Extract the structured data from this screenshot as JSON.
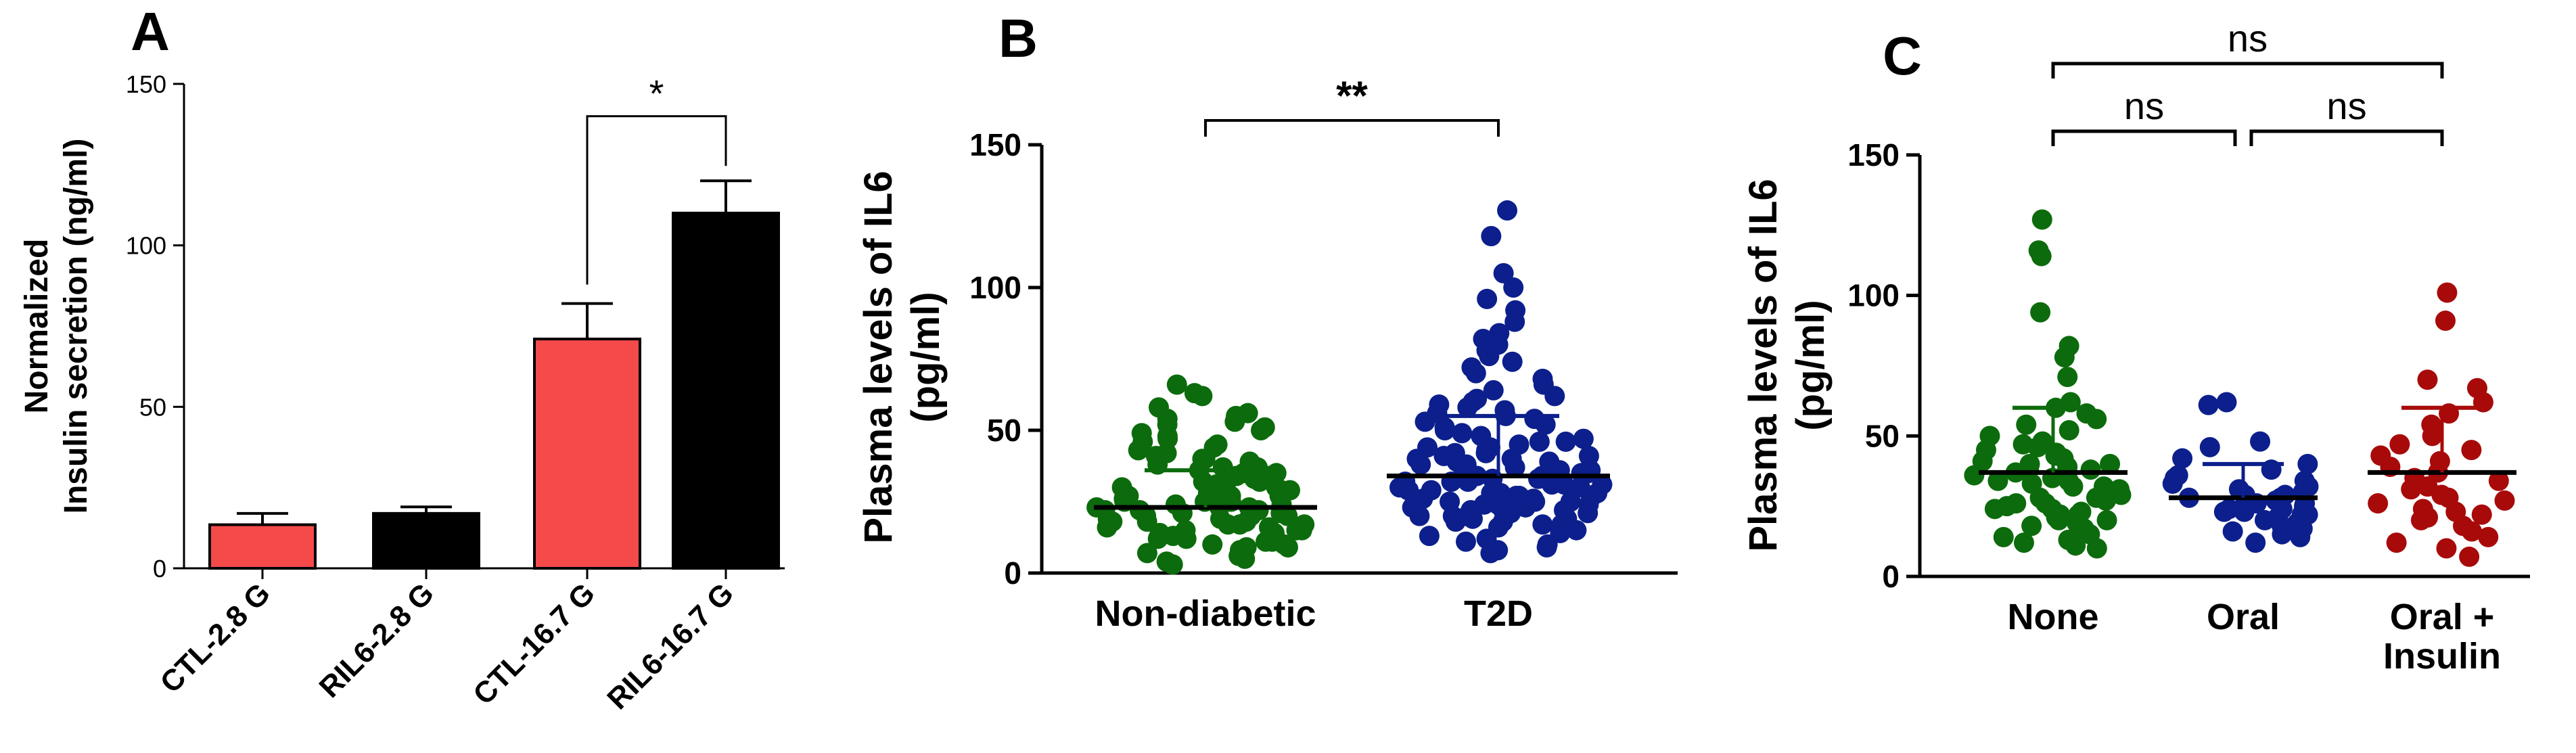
{
  "chart_data": [
    {
      "panel": "A",
      "type": "bar",
      "title": "",
      "xlabel": "",
      "ylabel": "Normalized Insulin secretion (ng/ml)",
      "ylabel_lines": [
        "Normalized",
        "Insulin secretion (ng/ml)"
      ],
      "ylim": [
        0,
        150
      ],
      "yticks": [
        0,
        50,
        100,
        150
      ],
      "categories": [
        "CTL-2.8 G",
        "RIL6-2.8 G",
        "CTL-16.7 G",
        "RIL6-16.7 G"
      ],
      "values": [
        13.5,
        17,
        71,
        110
      ],
      "errors": [
        3.5,
        2,
        11,
        10
      ],
      "colors": [
        "#f44a4a",
        "#000000",
        "#f44a4a",
        "#000000"
      ],
      "significance": [
        {
          "from": 2,
          "to": 3,
          "label": "*"
        }
      ]
    },
    {
      "panel": "B",
      "type": "scatter",
      "title": "",
      "xlabel": "",
      "ylabel": "Plasma levels of IL6 (pg/ml)",
      "ylabel_lines": [
        "Plasma levels of IL6",
        "(pg/ml)"
      ],
      "ylim": [
        0,
        150
      ],
      "yticks": [
        0,
        50,
        100,
        150
      ],
      "categories": [
        "Non-diabetic",
        "T2D"
      ],
      "colors": [
        "#0c6b0c",
        "#0c1f8c"
      ],
      "means": [
        23,
        34
      ],
      "sd_upper": [
        36,
        55
      ],
      "groups": [
        {
          "name": "Non-diabetic",
          "values": [
            66,
            63,
            62,
            58,
            56,
            55,
            54,
            53,
            52,
            51,
            50,
            49,
            48,
            47,
            46,
            45,
            44,
            43,
            42,
            41,
            40,
            40,
            39,
            38,
            37,
            37,
            36,
            35,
            35,
            34,
            34,
            33,
            32,
            32,
            31,
            31,
            30,
            30,
            29,
            29,
            28,
            28,
            27,
            27,
            27,
            26,
            26,
            25,
            25,
            25,
            24,
            24,
            23,
            23,
            23,
            22,
            22,
            22,
            21,
            21,
            20,
            20,
            20,
            19,
            19,
            18,
            18,
            18,
            17,
            17,
            17,
            16,
            16,
            15,
            15,
            15,
            14,
            14,
            13,
            13,
            12,
            12,
            11,
            11,
            10,
            10,
            9,
            9,
            8,
            7,
            6,
            5,
            4,
            3
          ]
        },
        {
          "name": "T2D",
          "values": [
            127,
            118,
            105,
            100,
            96,
            92,
            88,
            84,
            82,
            80,
            78,
            76,
            74,
            72,
            70,
            68,
            66,
            64,
            62,
            61,
            60,
            59,
            58,
            57,
            56,
            55,
            54,
            53,
            52,
            51,
            50,
            49,
            48,
            47,
            46,
            46,
            45,
            44,
            44,
            43,
            42,
            42,
            41,
            41,
            40,
            40,
            39,
            39,
            38,
            38,
            37,
            37,
            36,
            36,
            35,
            35,
            34,
            34,
            33,
            33,
            32,
            32,
            32,
            31,
            31,
            31,
            30,
            30,
            30,
            29,
            29,
            29,
            28,
            28,
            28,
            27,
            27,
            27,
            26,
            26,
            26,
            25,
            25,
            25,
            24,
            24,
            24,
            23,
            23,
            23,
            22,
            22,
            22,
            21,
            21,
            21,
            20,
            20,
            20,
            19,
            19,
            18,
            18,
            17,
            17,
            16,
            15,
            14,
            13,
            12,
            11,
            10,
            9,
            8,
            7
          ]
        }
      ],
      "significance": [
        {
          "from": 0,
          "to": 1,
          "label": "**"
        }
      ]
    },
    {
      "panel": "C",
      "type": "scatter",
      "title": "",
      "xlabel": "",
      "ylabel": "Plasma levels of IL6 (pg/ml)",
      "ylabel_lines": [
        "Plasma levels of IL6",
        "(pg/ml)"
      ],
      "ylim": [
        0,
        150
      ],
      "yticks": [
        0,
        50,
        100,
        150
      ],
      "categories": [
        "None",
        "Oral",
        "Oral + Insulin"
      ],
      "category_lines": [
        [
          "None"
        ],
        [
          "Oral"
        ],
        [
          "Oral +",
          "Insulin"
        ]
      ],
      "colors": [
        "#0c6b0c",
        "#0c1f8c",
        "#a80a0a"
      ],
      "means": [
        37,
        28,
        37
      ],
      "sd_upper": [
        60,
        40,
        60
      ],
      "groups": [
        {
          "name": "None",
          "values": [
            127,
            116,
            114,
            94,
            82,
            78,
            71,
            62,
            60,
            58,
            56,
            54,
            52,
            50,
            48,
            47,
            46,
            45,
            44,
            43,
            42,
            41,
            40,
            40,
            39,
            38,
            38,
            37,
            36,
            36,
            35,
            34,
            34,
            33,
            32,
            32,
            31,
            30,
            30,
            29,
            28,
            28,
            27,
            26,
            26,
            25,
            24,
            24,
            23,
            22,
            22,
            21,
            20,
            20,
            19,
            18,
            17,
            16,
            15,
            14,
            13,
            12,
            11,
            10
          ]
        },
        {
          "name": "Oral",
          "values": [
            62,
            61,
            48,
            46,
            42,
            40,
            38,
            36,
            35,
            34,
            33,
            32,
            31,
            30,
            29,
            29,
            28,
            28,
            27,
            27,
            26,
            26,
            25,
            25,
            24,
            24,
            23,
            23,
            22,
            22,
            21,
            20,
            19,
            18,
            17,
            16,
            15,
            14,
            12
          ]
        },
        {
          "name": "Oral + Insulin",
          "values": [
            101,
            91,
            70,
            67,
            62,
            58,
            54,
            50,
            47,
            45,
            43,
            41,
            39,
            37,
            35,
            34,
            32,
            31,
            29,
            28,
            27,
            26,
            24,
            23,
            22,
            21,
            20,
            18,
            16,
            14,
            12,
            10,
            7
          ]
        }
      ],
      "significance": [
        {
          "from": 0,
          "to": 1,
          "label": "ns"
        },
        {
          "from": 1,
          "to": 2,
          "label": "ns"
        },
        {
          "from": 0,
          "to": 2,
          "label": "ns"
        }
      ]
    }
  ]
}
